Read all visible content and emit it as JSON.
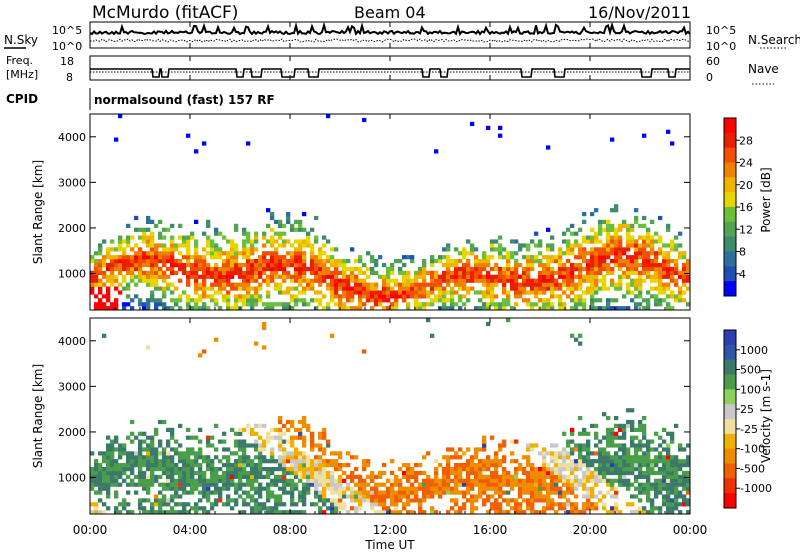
{
  "header": {
    "station": "McMurdo (fitACF)",
    "beam": "Beam 04",
    "date": "16/Nov/2011"
  },
  "noise_panel": {
    "left_label": "N.Sky",
    "right_label": "N.Search",
    "tick_top": "10^5",
    "tick_bottom": "10^0",
    "right_tick_top": "10^5",
    "right_tick_bottom": "10^0"
  },
  "freq_panel": {
    "left_label_1": "Freq.",
    "left_label_2": "[MHz]",
    "right_label": "Nave",
    "left_ticks": [
      "18",
      "8"
    ],
    "right_ticks": [
      "60",
      "0"
    ]
  },
  "cpid": {
    "label": "CPID",
    "value": "normalsound (fast) 157 RF"
  },
  "time_axis": {
    "title": "Time UT",
    "ticks": [
      "00:00",
      "04:00",
      "08:00",
      "12:00",
      "16:00",
      "20:00",
      "00:00"
    ]
  },
  "colors": {
    "power": [
      "#0000ff",
      "#1f4fb3",
      "#2e6fa0",
      "#3d8c6b",
      "#52a452",
      "#6bbf3a",
      "#e8d400",
      "#f0b400",
      "#f08000",
      "#f05000",
      "#e82000",
      "#ff0000"
    ],
    "velocity": [
      "#2d3fb0",
      "#2f55a8",
      "#3b7a6a",
      "#4a9e4a",
      "#8cd25a",
      "#c8c8c8",
      "#f0e0a0",
      "#f0b000",
      "#f08c00",
      "#f06000",
      "#f03000",
      "#ff0000"
    ]
  },
  "chart_data": [
    {
      "type": "heatmap",
      "name": "power-panel",
      "ylabel": "Slant Range [km]",
      "yticks": [
        1000,
        2000,
        3000,
        4000
      ],
      "ylim": [
        200,
        4500
      ],
      "x": [
        "00:00",
        "04:00",
        "08:00",
        "12:00",
        "16:00",
        "20:00",
        "00:00"
      ],
      "colorbar": {
        "label": "Power [dB]",
        "ticks": [
          "4",
          "8",
          "12",
          "16",
          "20",
          "24",
          "28"
        ]
      }
    },
    {
      "type": "heatmap",
      "name": "velocity-panel",
      "ylabel": "Slant Range [km]",
      "yticks": [
        1000,
        2000,
        3000,
        4000
      ],
      "ylim": [
        200,
        4500
      ],
      "x": [
        "00:00",
        "04:00",
        "08:00",
        "12:00",
        "16:00",
        "20:00",
        "00:00"
      ],
      "colorbar": {
        "label": "Velocity [m s-1]",
        "ticks": [
          "1000",
          "500",
          "100",
          "25",
          "-25",
          "-100",
          "-500",
          "-1000"
        ]
      }
    }
  ]
}
